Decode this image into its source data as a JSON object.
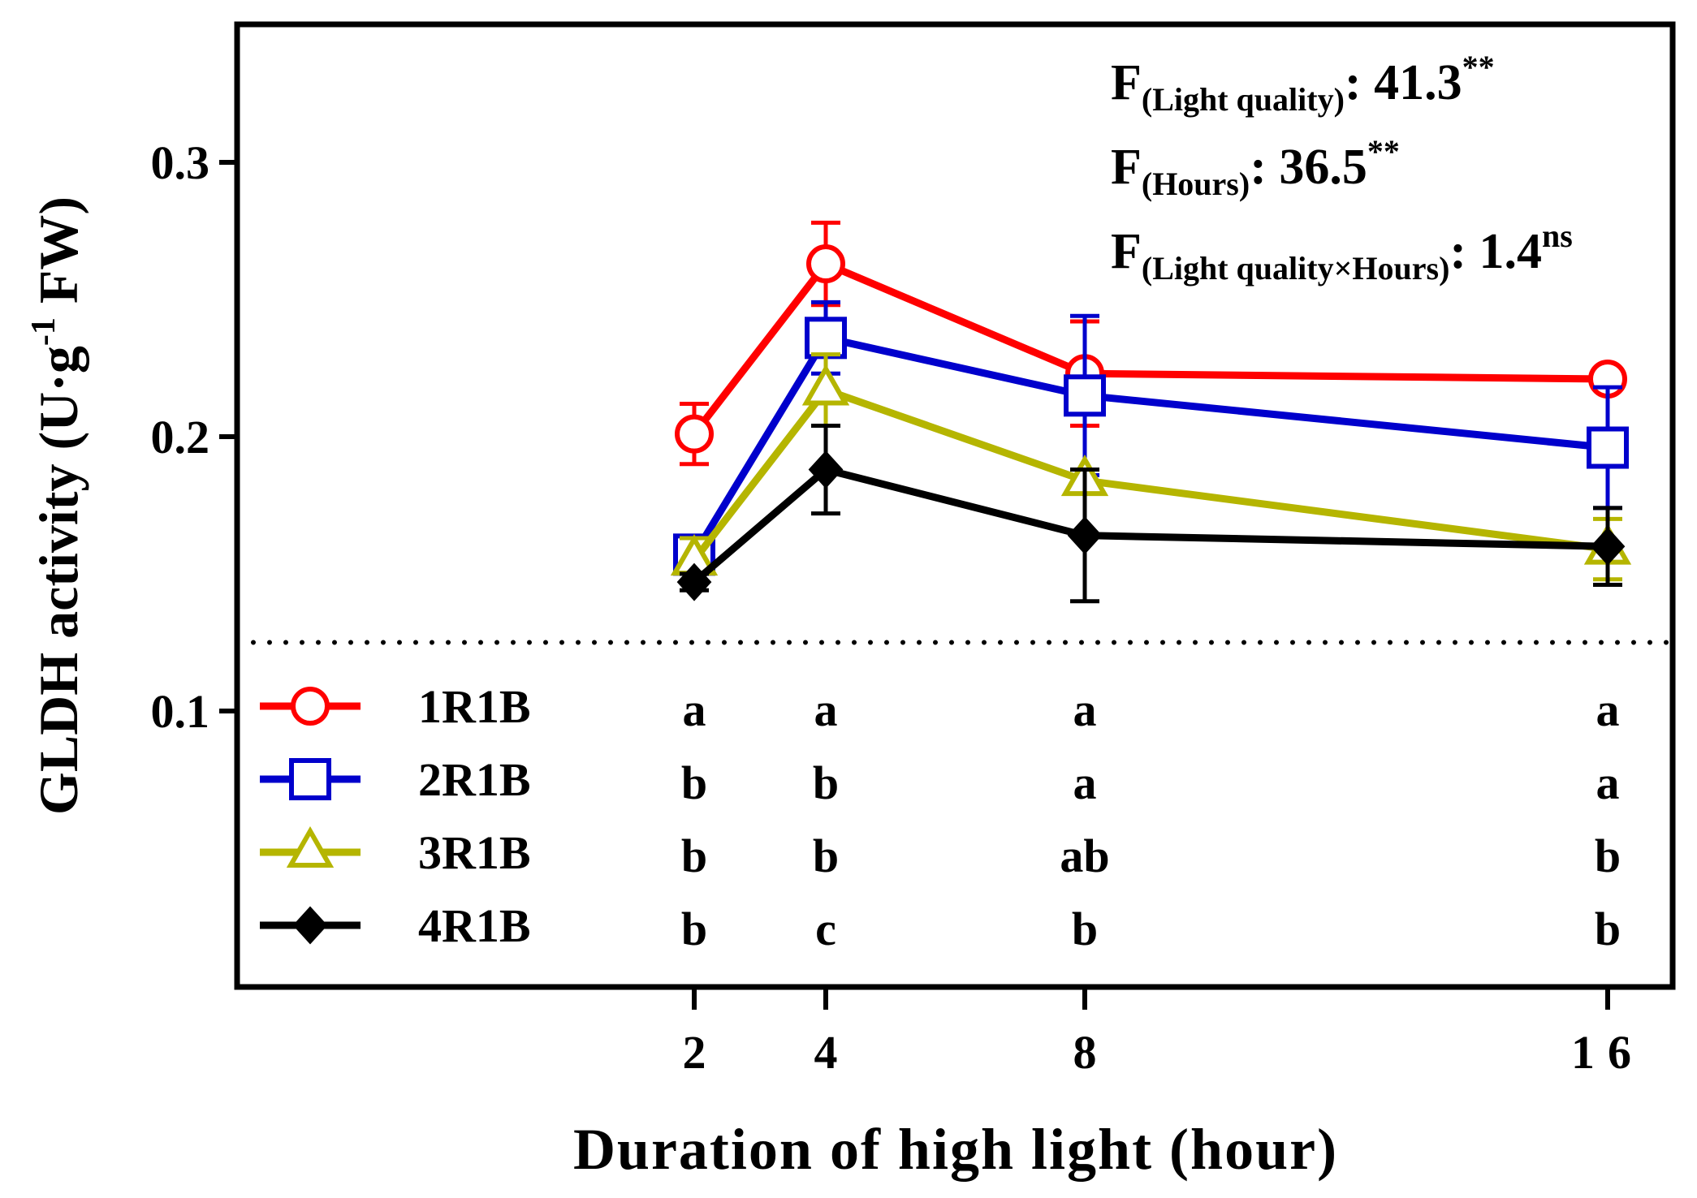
{
  "chart_data": {
    "type": "line",
    "title": "",
    "xlabel": "Duration of high light (hour)",
    "ylabel_main": "GLDH activity (U·g",
    "ylabel_sup": "-1",
    "ylabel_end": " FW)",
    "x_categories": [
      "2",
      "4",
      "8",
      "16"
    ],
    "x_values": [
      2,
      4,
      8,
      16
    ],
    "y_ticks": [
      "0.1",
      "0.2",
      "0.3"
    ],
    "y_tick_values": [
      0.1,
      0.2,
      0.3
    ],
    "ylim": [
      0.0,
      0.35
    ],
    "reference_line_y": 0.125,
    "legend_position": "bottom-left",
    "series": [
      {
        "name": "1R1B",
        "color": "#ff0000",
        "marker": "circle-open",
        "values": [
          0.201,
          0.263,
          0.223,
          0.221
        ],
        "errors": [
          0.011,
          0.015,
          0.019,
          0.0
        ],
        "letters": [
          "a",
          "a",
          "a",
          "a"
        ]
      },
      {
        "name": "2R1B",
        "color": "#0000cc",
        "marker": "square-open",
        "values": [
          0.157,
          0.236,
          0.215,
          0.196
        ],
        "errors": [
          0.006,
          0.013,
          0.029,
          0.022
        ],
        "letters": [
          "b",
          "b",
          "a",
          "a"
        ]
      },
      {
        "name": "3R1B",
        "color": "#b5b500",
        "marker": "triangle-open",
        "values": [
          0.155,
          0.217,
          0.184,
          0.159
        ],
        "errors": [
          0.008,
          0.013,
          0.004,
          0.011
        ],
        "letters": [
          "b",
          "b",
          "ab",
          "b"
        ]
      },
      {
        "name": "4R1B",
        "color": "#000000",
        "marker": "diamond-filled",
        "values": [
          0.147,
          0.188,
          0.164,
          0.16
        ],
        "errors": [
          0.003,
          0.016,
          0.024,
          0.014
        ],
        "letters": [
          "b",
          "c",
          "b",
          "b"
        ]
      }
    ],
    "stats": [
      {
        "label_main": "F",
        "label_sub": "(Light quality)",
        "label_colon": ": ",
        "value": "41.3",
        "sig": "**"
      },
      {
        "label_main": "F",
        "label_sub": "(Hours)",
        "label_colon": ": ",
        "value": "36.5",
        "sig": "**"
      },
      {
        "label_main": "F",
        "label_sub": "(Light quality×Hours)",
        "label_colon": ": ",
        "value": "1.4",
        "sig": "ns"
      }
    ]
  }
}
